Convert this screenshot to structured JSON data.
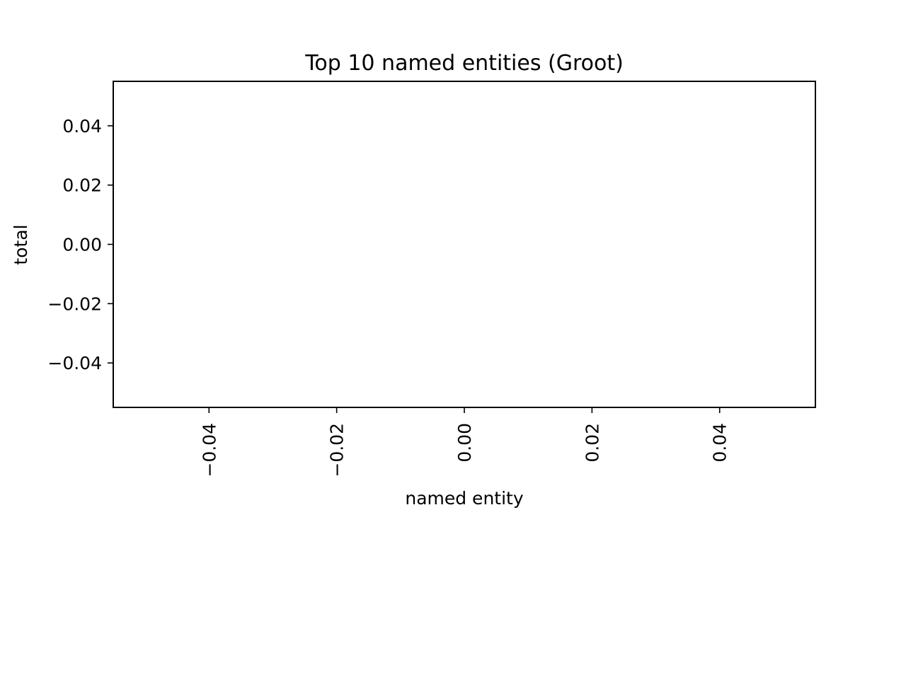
{
  "chart_data": {
    "type": "bar",
    "title": "Top 10 named entities (Groot)",
    "xlabel": "named entity",
    "ylabel": "total",
    "categories": [],
    "values": [],
    "xlim": [
      -0.055,
      0.055
    ],
    "ylim": [
      -0.055,
      0.055
    ],
    "x_ticks": [
      -0.04,
      -0.02,
      0.0,
      0.02,
      0.04
    ],
    "x_tick_labels": [
      "−0.04",
      "−0.02",
      "0.00",
      "0.02",
      "0.04"
    ],
    "y_ticks": [
      -0.04,
      -0.02,
      0.0,
      0.02,
      0.04
    ],
    "y_tick_labels": [
      "−0.04",
      "−0.02",
      "0.00",
      "0.02",
      "0.04"
    ],
    "x_tick_label_rotation": "vertical",
    "grid": false,
    "legend": "none",
    "colors": {
      "axes": "#000000",
      "background": "#ffffff"
    }
  }
}
